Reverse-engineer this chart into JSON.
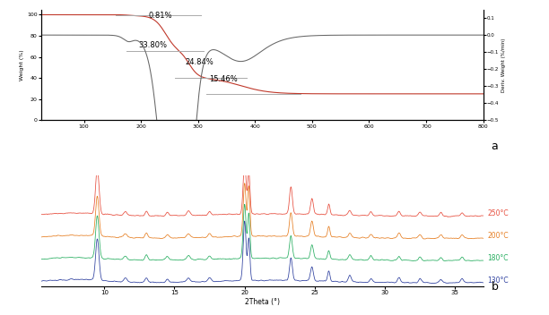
{
  "panel_a": {
    "tga_color": "#c0392b",
    "dtg_color": "#666666",
    "xlim": [
      25,
      800
    ],
    "ylim_left": [
      0,
      105
    ],
    "ylim_right": [
      -0.5,
      0.15
    ],
    "ylabel_left": "Weight (%)",
    "ylabel_right": "Deriv. Weight (%/min)",
    "ann_data": [
      {
        "text": "0.81%",
        "xline_start": 155,
        "xline_end": 305,
        "yline": 99.2,
        "xtext": 213,
        "ytext": 97
      },
      {
        "text": "33.80%",
        "xline_start": 175,
        "xline_end": 310,
        "yline": 65.5,
        "xtext": 195,
        "ytext": 69
      },
      {
        "text": "24.84%",
        "xline_start": 260,
        "xline_end": 385,
        "yline": 40.5,
        "xtext": 278,
        "ytext": 53
      },
      {
        "text": "15.46%",
        "xline_start": 315,
        "xline_end": 480,
        "yline": 25.0,
        "xtext": 320,
        "ytext": 37
      }
    ]
  },
  "panel_b": {
    "xlabel": "2Theta (°)",
    "colors": [
      "#e74c3c",
      "#e67e22",
      "#27ae60",
      "#2c3e9e"
    ],
    "legend_labels": [
      "250°C",
      "200°C",
      "180°C",
      "130°C"
    ],
    "xlim": [
      5.5,
      37
    ],
    "ylim": [
      -0.05,
      1.35
    ]
  }
}
